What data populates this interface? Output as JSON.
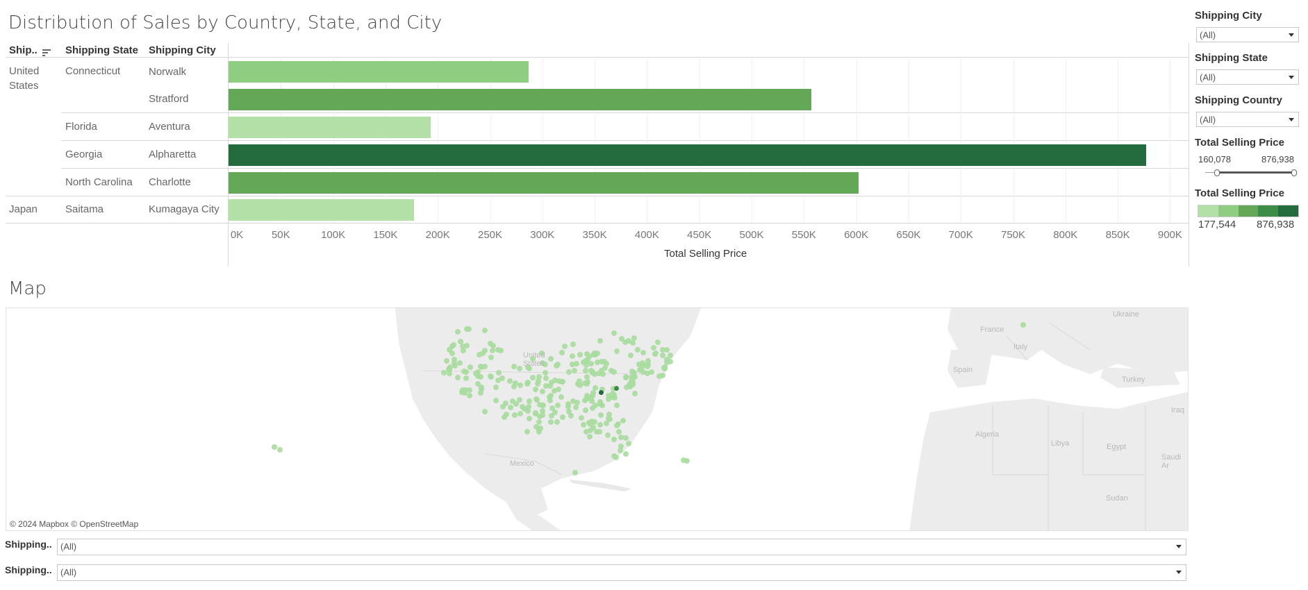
{
  "chart_title": "Distribution of Sales by Country, State, and City",
  "headers": {
    "country": "Ship..",
    "state": "Shipping State",
    "city": "Shipping City"
  },
  "axis_title": "Total Selling Price",
  "ticks": [
    "0K",
    "50K",
    "100K",
    "150K",
    "200K",
    "250K",
    "300K",
    "350K",
    "400K",
    "450K",
    "500K",
    "550K",
    "600K",
    "650K",
    "700K",
    "750K",
    "800K",
    "850K",
    "900K"
  ],
  "rows": [
    {
      "country": "United States",
      "state": "Connecticut",
      "city": "Norwalk"
    },
    {
      "country": "",
      "state": "",
      "city": "Stratford"
    },
    {
      "country": "",
      "state": "Florida",
      "city": "Aventura"
    },
    {
      "country": "",
      "state": "Georgia",
      "city": "Alpharetta"
    },
    {
      "country": "",
      "state": "North Carolina",
      "city": "Charlotte"
    },
    {
      "country": "Japan",
      "state": "Saitama",
      "city": "Kumagaya City"
    }
  ],
  "chart_data": {
    "type": "bar",
    "orientation": "horizontal",
    "categories": [
      "Norwalk",
      "Stratford",
      "Aventura",
      "Alpharetta",
      "Charlotte",
      "Kumagaya City"
    ],
    "values": [
      287000,
      557000,
      193000,
      876938,
      602000,
      177544
    ],
    "xlabel": "Total Selling Price",
    "xlim": [
      0,
      900000
    ],
    "color_scale": {
      "min": 177544,
      "max": 876938,
      "colors": [
        "#b3e0a6",
        "#8fce80",
        "#62a856",
        "#3d8c48",
        "#236b3c"
      ]
    }
  },
  "map": {
    "title": "Map",
    "attribution": "© 2024 Mapbox © OpenStreetMap",
    "labels": [
      "United States",
      "Mexico",
      "France",
      "Italy",
      "Spain",
      "Ukraine",
      "Turkey",
      "Iraq",
      "Algeria",
      "Libya",
      "Egypt",
      "Saudi Ar",
      "Sudan"
    ]
  },
  "filters": {
    "city": {
      "label": "Shipping City",
      "value": "(All)"
    },
    "state": {
      "label": "Shipping State",
      "value": "(All)"
    },
    "country": {
      "label": "Shipping Country",
      "value": "(All)"
    },
    "slider": {
      "label": "Total Selling Price",
      "min": "160,078",
      "max": "876,938"
    },
    "legend": {
      "label": "Total Selling Price",
      "min": "177,544",
      "max": "876,938"
    }
  },
  "bottom_filters": [
    {
      "label": "Shipping..",
      "value": "(All)"
    },
    {
      "label": "Shipping..",
      "value": "(All)"
    }
  ]
}
